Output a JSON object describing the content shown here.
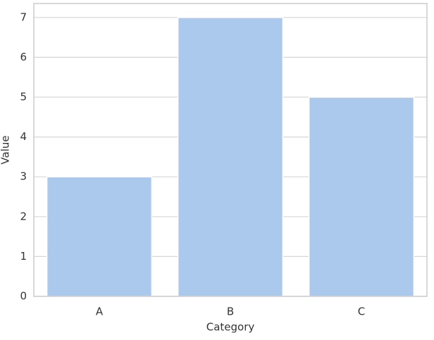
{
  "chart_data": {
    "type": "bar",
    "x_label": "Category",
    "y_label": "Value",
    "categories": [
      "A",
      "B",
      "C"
    ],
    "values": [
      3,
      7,
      5
    ],
    "color": "#abc9ed",
    "ylim": [
      0,
      7.35
    ],
    "yticks": [
      0,
      1,
      2,
      3,
      4,
      5,
      6,
      7
    ],
    "grid": true
  }
}
